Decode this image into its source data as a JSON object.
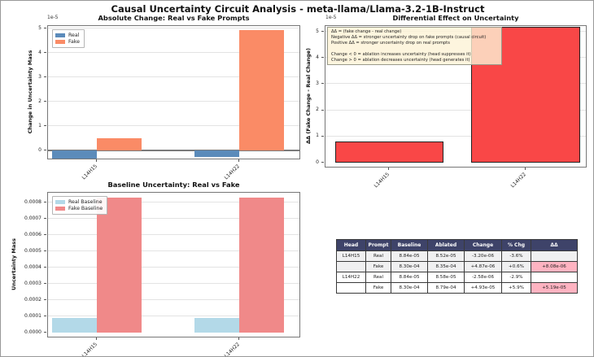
{
  "figure": {
    "title": "Causal Uncertainty Circuit Analysis - meta-llama/Llama-3.2-1B-Instruct"
  },
  "chart_data": [
    {
      "id": "absolute-change",
      "type": "bar",
      "title": "Absolute Change: Real vs Fake Prompts",
      "ylabel": "Change in Uncertainty Mass",
      "y_offset_label": "1e-5",
      "categories": [
        "L14H15",
        "L14H22"
      ],
      "series": [
        {
          "name": "Real",
          "color": "#5b8bba",
          "values": [
            -3.2e-06,
            -2.58e-06
          ]
        },
        {
          "name": "Fake",
          "color": "#fa8b66",
          "values": [
            4.87e-06,
            4.93e-05
          ]
        }
      ],
      "ytick_labels": [
        "0",
        "1",
        "2",
        "3",
        "4",
        "5"
      ],
      "ylim": [
        -5.5e-06,
        5.15e-05
      ],
      "grid": true,
      "legend_position": "upper left",
      "zero_line": true
    },
    {
      "id": "differential-effect",
      "type": "bar",
      "title": "Differential Effect on Uncertainty",
      "ylabel": "ΔΔ (Fake Change - Real Change)",
      "y_offset_label": "1e-5",
      "categories": [
        "L14H15",
        "L14H22"
      ],
      "series": [
        {
          "name": "ΔΔ",
          "color": "#f94747",
          "values": [
            8.08e-06,
            5.19e-05
          ]
        }
      ],
      "ytick_labels": [
        "0",
        "1",
        "2",
        "3",
        "4",
        "5"
      ],
      "ylim": [
        0,
        5.43e-05
      ],
      "grid": true,
      "annotation_lines": [
        "ΔΔ = (fake change - real change)",
        "Negative ΔΔ = stronger uncertainty drop on fake prompts (causal circuit)",
        "Positive ΔΔ = stronger uncertainty drop on real prompts",
        "",
        "Change < 0 = ablation increases uncertainty (head suppresses it)",
        "Change > 0 = ablation decreases uncertainty (head generates it)"
      ]
    },
    {
      "id": "baseline-uncertainty",
      "type": "bar",
      "title": "Baseline Uncertainty: Real vs Fake",
      "ylabel": "Uncertainty Mass",
      "categories": [
        "L14H15",
        "L14H22"
      ],
      "series": [
        {
          "name": "Real Baseline",
          "color": "#b3d9e8",
          "values": [
            8.84e-05,
            8.84e-05
          ]
        },
        {
          "name": "Fake Baseline",
          "color": "#f08989",
          "values": [
            0.00083,
            0.00083
          ]
        }
      ],
      "ytick_labels": [
        "0.0000",
        "0.0001",
        "0.0002",
        "0.0003",
        "0.0004",
        "0.0005",
        "0.0006",
        "0.0007",
        "0.0008"
      ],
      "ylim": [
        0,
        0.00086
      ],
      "grid": true,
      "legend_position": "upper left"
    }
  ],
  "table": {
    "headers": [
      "Head",
      "Prompt",
      "Baseline",
      "Ablated",
      "Change",
      "% Chg",
      "ΔΔ"
    ],
    "rows": [
      [
        "L14H15",
        "Real",
        "8.84e-05",
        "8.52e-05",
        "-3.20e-06",
        "-3.6%",
        ""
      ],
      [
        "",
        "Fake",
        "8.30e-04",
        "8.35e-04",
        "+4.87e-06",
        "+0.6%",
        "+8.08e-06"
      ],
      [
        "L14H22",
        "Real",
        "8.84e-05",
        "8.58e-05",
        "-2.58e-06",
        "-2.9%",
        ""
      ],
      [
        "",
        "Fake",
        "8.30e-04",
        "8.79e-04",
        "+4.93e-05",
        "+5.9%",
        "+5.19e-05"
      ]
    ],
    "header_bg": "#3e4369",
    "header_text_color": "#ffffff",
    "highlight_color": "#ffb3c1",
    "row_colors": [
      "#f0f0f1",
      "#f0f0f1",
      "#ffffff",
      "#ffffff"
    ]
  }
}
